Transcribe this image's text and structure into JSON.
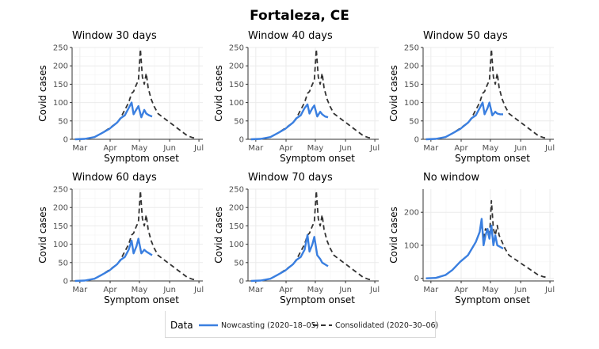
{
  "title": "Fortaleza, CE",
  "colors": {
    "nowcast": "#3a7fe0",
    "consolidated": "#333333",
    "grid": "#ebebeb",
    "axis": "#333333"
  },
  "legend": {
    "title": "Data",
    "nowcasting": "Nowcasting (2020–18–05)",
    "consolidated": "Consolidated (2020–30–06)"
  },
  "chart_data": [
    {
      "type": "line",
      "panel": "Window 30 days",
      "xlabel": "Symptom onset",
      "ylabel": "Covid cases",
      "xticks": [
        "Mar",
        "Apr",
        "May",
        "Jun",
        "Jul"
      ],
      "yticks": [
        0,
        50,
        100,
        150,
        200,
        250
      ],
      "ylim": [
        0,
        250
      ],
      "x_tick_days": [
        0,
        31,
        61,
        92,
        122
      ],
      "xlim_days": [
        -8,
        126
      ],
      "series": [
        {
          "name": "Nowcasting (2020–18–05)",
          "style": "solid",
          "x": [
            -5,
            5,
            15,
            22,
            30,
            38,
            42,
            46,
            50,
            53,
            55,
            58,
            60,
            63,
            66,
            68,
            71,
            74
          ],
          "y": [
            0,
            1,
            6,
            16,
            28,
            45,
            58,
            65,
            85,
            100,
            68,
            82,
            90,
            60,
            80,
            70,
            65,
            62
          ]
        },
        {
          "name": "Consolidated (2020–30–06)",
          "style": "dashed",
          "x": [
            -5,
            5,
            15,
            22,
            30,
            38,
            42,
            46,
            50,
            53,
            55,
            58,
            60,
            62,
            64,
            66,
            68,
            70,
            73,
            76,
            80,
            85,
            90,
            95,
            100,
            105,
            110,
            115,
            120
          ],
          "y": [
            0,
            1,
            6,
            16,
            30,
            45,
            60,
            80,
            100,
            125,
            130,
            150,
            160,
            245,
            170,
            150,
            180,
            140,
            110,
            90,
            70,
            60,
            50,
            40,
            30,
            20,
            10,
            5,
            2
          ]
        }
      ]
    },
    {
      "type": "line",
      "panel": "Window 40 days",
      "xlabel": "Symptom onset",
      "ylabel": "Covid cases",
      "xticks": [
        "Mar",
        "Apr",
        "May",
        "Jun",
        "Jul"
      ],
      "yticks": [
        0,
        50,
        100,
        150,
        200,
        250
      ],
      "ylim": [
        0,
        250
      ],
      "x_tick_days": [
        0,
        31,
        61,
        92,
        122
      ],
      "xlim_days": [
        -8,
        126
      ],
      "series": [
        {
          "name": "Nowcasting (2020–18–05)",
          "style": "solid",
          "x": [
            -5,
            5,
            15,
            22,
            30,
            38,
            42,
            46,
            50,
            53,
            55,
            58,
            60,
            63,
            66,
            68,
            71,
            74
          ],
          "y": [
            0,
            1,
            6,
            16,
            28,
            45,
            58,
            65,
            85,
            95,
            70,
            85,
            92,
            62,
            75,
            68,
            62,
            60
          ]
        },
        {
          "name": "Consolidated (2020–30–06)",
          "style": "dashed",
          "x": [
            -5,
            5,
            15,
            22,
            30,
            38,
            42,
            46,
            50,
            53,
            55,
            58,
            60,
            62,
            64,
            66,
            68,
            70,
            73,
            76,
            80,
            85,
            90,
            95,
            100,
            105,
            110,
            115,
            120
          ],
          "y": [
            0,
            1,
            6,
            16,
            30,
            45,
            60,
            80,
            100,
            125,
            130,
            150,
            160,
            245,
            170,
            150,
            180,
            140,
            110,
            90,
            70,
            60,
            50,
            40,
            30,
            20,
            10,
            5,
            2
          ]
        }
      ]
    },
    {
      "type": "line",
      "panel": "Window 50 days",
      "xlabel": "Symptom onset",
      "ylabel": "Covid cases",
      "xticks": [
        "Mar",
        "Apr",
        "May",
        "Jun",
        "Jul"
      ],
      "yticks": [
        0,
        50,
        100,
        150,
        200,
        250
      ],
      "ylim": [
        0,
        250
      ],
      "x_tick_days": [
        0,
        31,
        61,
        92,
        122
      ],
      "xlim_days": [
        -8,
        126
      ],
      "series": [
        {
          "name": "Nowcasting (2020–18–05)",
          "style": "solid",
          "x": [
            -5,
            5,
            15,
            22,
            30,
            38,
            42,
            46,
            50,
            53,
            55,
            58,
            60,
            63,
            66,
            68,
            71,
            74
          ],
          "y": [
            0,
            1,
            6,
            16,
            28,
            45,
            58,
            65,
            85,
            100,
            68,
            85,
            100,
            65,
            75,
            70,
            68,
            68
          ]
        },
        {
          "name": "Consolidated (2020–30–06)",
          "style": "dashed",
          "x": [
            -5,
            5,
            15,
            22,
            30,
            38,
            42,
            46,
            50,
            53,
            55,
            58,
            60,
            62,
            64,
            66,
            68,
            70,
            73,
            76,
            80,
            85,
            90,
            95,
            100,
            105,
            110,
            115,
            120
          ],
          "y": [
            0,
            1,
            6,
            16,
            30,
            45,
            60,
            80,
            100,
            125,
            130,
            150,
            160,
            245,
            170,
            150,
            180,
            140,
            110,
            90,
            70,
            60,
            50,
            40,
            30,
            20,
            10,
            5,
            2
          ]
        }
      ]
    },
    {
      "type": "line",
      "panel": "Window 60 days",
      "xlabel": "Symptom onset",
      "ylabel": "Covid cases",
      "xticks": [
        "Mar",
        "Apr",
        "May",
        "Jun",
        "Jul"
      ],
      "yticks": [
        0,
        50,
        100,
        150,
        200,
        250
      ],
      "ylim": [
        0,
        250
      ],
      "x_tick_days": [
        0,
        31,
        61,
        92,
        122
      ],
      "xlim_days": [
        -8,
        126
      ],
      "series": [
        {
          "name": "Nowcasting (2020–18–05)",
          "style": "solid",
          "x": [
            -5,
            5,
            15,
            22,
            30,
            38,
            42,
            46,
            50,
            53,
            55,
            58,
            60,
            63,
            66,
            68,
            71,
            74
          ],
          "y": [
            0,
            1,
            6,
            16,
            28,
            45,
            58,
            65,
            85,
            110,
            75,
            95,
            115,
            75,
            85,
            80,
            75,
            70
          ]
        },
        {
          "name": "Consolidated (2020–30–06)",
          "style": "dashed",
          "x": [
            -5,
            5,
            15,
            22,
            30,
            38,
            42,
            46,
            50,
            53,
            55,
            58,
            60,
            62,
            64,
            66,
            68,
            70,
            73,
            76,
            80,
            85,
            90,
            95,
            100,
            105,
            110,
            115,
            120
          ],
          "y": [
            0,
            1,
            6,
            16,
            30,
            45,
            60,
            80,
            100,
            125,
            130,
            150,
            160,
            245,
            170,
            150,
            180,
            140,
            110,
            90,
            70,
            60,
            50,
            40,
            30,
            20,
            10,
            5,
            2
          ]
        }
      ]
    },
    {
      "type": "line",
      "panel": "Window 70 days",
      "xlabel": "Symptom onset",
      "ylabel": "Covid cases",
      "xticks": [
        "Mar",
        "Apr",
        "May",
        "Jun",
        "Jul"
      ],
      "yticks": [
        0,
        50,
        100,
        150,
        200,
        250
      ],
      "ylim": [
        0,
        250
      ],
      "x_tick_days": [
        0,
        31,
        61,
        92,
        122
      ],
      "xlim_days": [
        -8,
        126
      ],
      "series": [
        {
          "name": "Nowcasting (2020–18–05)",
          "style": "solid",
          "x": [
            -5,
            5,
            15,
            22,
            30,
            38,
            42,
            46,
            50,
            53,
            55,
            58,
            60,
            63,
            66,
            68,
            71,
            74
          ],
          "y": [
            0,
            1,
            6,
            16,
            28,
            45,
            58,
            65,
            85,
            125,
            80,
            100,
            120,
            70,
            60,
            50,
            45,
            40
          ]
        },
        {
          "name": "Consolidated (2020–30–06)",
          "style": "dashed",
          "x": [
            -5,
            5,
            15,
            22,
            30,
            38,
            42,
            46,
            50,
            53,
            55,
            58,
            60,
            62,
            64,
            66,
            68,
            70,
            73,
            76,
            80,
            85,
            90,
            95,
            100,
            105,
            110,
            115,
            120
          ],
          "y": [
            0,
            1,
            6,
            16,
            30,
            45,
            60,
            80,
            100,
            125,
            130,
            150,
            160,
            245,
            170,
            150,
            180,
            140,
            110,
            90,
            70,
            60,
            50,
            40,
            30,
            20,
            10,
            5,
            2
          ]
        }
      ]
    },
    {
      "type": "line",
      "panel": "No window",
      "xlabel": "Symptom onset",
      "ylabel": "Covid cases",
      "xticks": [
        "Mar",
        "Apr",
        "May",
        "Jun",
        "Jul"
      ],
      "yticks": [
        0,
        100,
        200
      ],
      "ylim": [
        -8,
        270
      ],
      "x_tick_days": [
        0,
        31,
        61,
        92,
        122
      ],
      "xlim_days": [
        -8,
        126
      ],
      "series": [
        {
          "name": "Nowcasting (2020–18–05)",
          "style": "solid",
          "x": [
            -5,
            5,
            15,
            22,
            30,
            38,
            42,
            46,
            50,
            52,
            54,
            56,
            58,
            60,
            62,
            64,
            66,
            68,
            71,
            74
          ],
          "y": [
            0,
            1,
            10,
            25,
            50,
            70,
            90,
            110,
            140,
            180,
            100,
            130,
            150,
            120,
            160,
            100,
            130,
            100,
            95,
            90
          ]
        },
        {
          "name": "Consolidated (2020–30–06)",
          "style": "dashed",
          "x": [
            -5,
            5,
            15,
            22,
            30,
            38,
            42,
            46,
            50,
            52,
            54,
            56,
            58,
            60,
            62,
            64,
            66,
            68,
            70,
            73,
            76,
            80,
            85,
            90,
            95,
            100,
            105,
            110,
            115,
            120
          ],
          "y": [
            0,
            1,
            10,
            25,
            50,
            70,
            90,
            110,
            140,
            170,
            120,
            150,
            140,
            120,
            235,
            150,
            130,
            160,
            130,
            110,
            90,
            70,
            60,
            50,
            40,
            30,
            20,
            10,
            5,
            2
          ]
        }
      ]
    }
  ]
}
